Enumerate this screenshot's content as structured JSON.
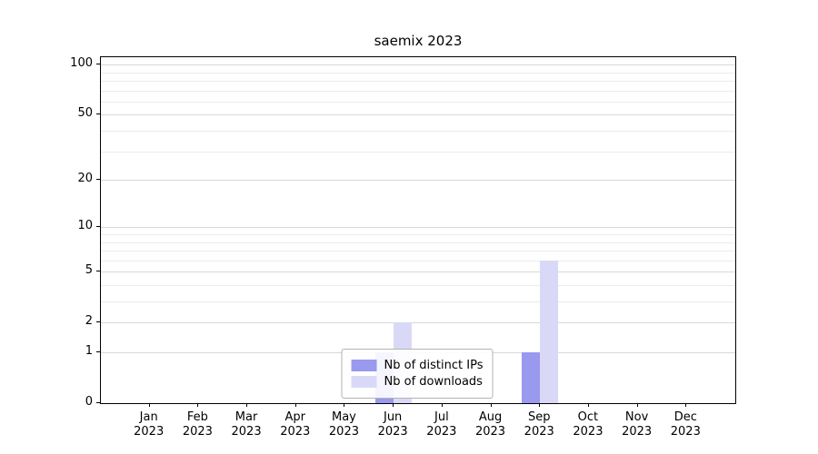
{
  "chart_data": {
    "type": "bar",
    "title": "saemix 2023",
    "categories": [
      "Jan",
      "Feb",
      "Mar",
      "Apr",
      "May",
      "Jun",
      "Jul",
      "Aug",
      "Sep",
      "Oct",
      "Nov",
      "Dec"
    ],
    "year_label": "2023",
    "series": [
      {
        "name": "Nb of distinct IPs",
        "color": "#9999ee",
        "values": [
          0,
          0,
          0,
          0,
          0,
          1,
          0,
          0,
          1,
          0,
          0,
          0
        ]
      },
      {
        "name": "Nb of downloads",
        "color": "#d9d9f7",
        "values": [
          0,
          0,
          0,
          0,
          0,
          2,
          0,
          0,
          6,
          0,
          0,
          0
        ]
      }
    ],
    "yscale": "log1p",
    "ylabel": "",
    "xlabel": "",
    "ytick_labels": [
      "0",
      "1",
      "2",
      "5",
      "10",
      "20",
      "50",
      "100"
    ],
    "ytick_values": [
      0,
      1,
      2,
      5,
      10,
      20,
      50,
      100
    ],
    "minor_gridlines": [
      1,
      2,
      3,
      4,
      5,
      6,
      7,
      8,
      9,
      10,
      20,
      30,
      40,
      50,
      60,
      70,
      80,
      90,
      100
    ],
    "grid": true,
    "legend_position": "lower center"
  },
  "colors": {
    "axis": "#000000",
    "grid_major": "#d8d8d8",
    "grid_minor": "#ececec",
    "background": "#ffffff",
    "legend_border": "#b3b3b3"
  }
}
